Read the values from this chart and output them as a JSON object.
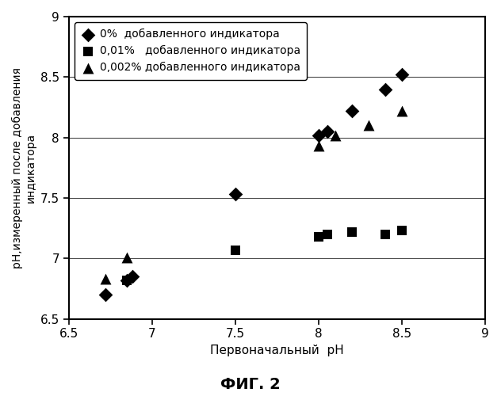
{
  "title": "ФИГ. 2",
  "xlabel": "Первоначальный  рН",
  "ylabel": "рН,измеренный после добавления\nиндикатора",
  "xlim": [
    6.5,
    9.0
  ],
  "ylim": [
    6.5,
    9.0
  ],
  "xticks": [
    6.5,
    7.0,
    7.5,
    8.0,
    8.5,
    9.0
  ],
  "yticks": [
    6.5,
    7.0,
    7.5,
    8.0,
    8.5,
    9.0
  ],
  "xtick_labels": [
    "6.5",
    "7",
    "7.5",
    "8",
    "8.5",
    "9"
  ],
  "ytick_labels": [
    "6.5",
    "7",
    "7.5",
    "8",
    "8.5",
    "9"
  ],
  "series": [
    {
      "label": "0%  добавленного индикатора",
      "marker": "D",
      "color": "black",
      "markersize": 9,
      "x": [
        6.72,
        6.85,
        6.88,
        7.5,
        8.0,
        8.05,
        8.2,
        8.4,
        8.5
      ],
      "y": [
        6.7,
        6.82,
        6.85,
        7.53,
        8.02,
        8.05,
        8.22,
        8.4,
        8.52
      ]
    },
    {
      "label": "0,01%   добавленного индикатора",
      "marker": "s",
      "color": "black",
      "markersize": 9,
      "x": [
        6.85,
        7.5,
        8.0,
        8.05,
        8.2,
        8.4,
        8.5
      ],
      "y": [
        6.82,
        7.07,
        7.18,
        7.2,
        7.22,
        7.2,
        7.23
      ]
    },
    {
      "label": "0,002% добавленного индикатора",
      "marker": "^",
      "color": "black",
      "markersize": 10,
      "x": [
        6.72,
        6.85,
        8.0,
        8.1,
        8.3,
        8.5
      ],
      "y": [
        6.83,
        7.01,
        7.93,
        8.02,
        8.1,
        8.22
      ]
    }
  ],
  "title_fontsize": 14,
  "xlabel_fontsize": 11,
  "ylabel_fontsize": 10,
  "tick_fontsize": 11,
  "legend_fontsize": 10,
  "grid_color": "#000000",
  "grid_linewidth": 0.8,
  "spine_linewidth": 1.5,
  "background_color": "#ffffff"
}
